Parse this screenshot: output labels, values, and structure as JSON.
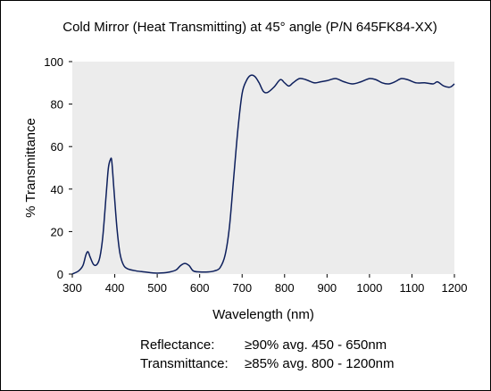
{
  "chart_data": {
    "type": "line",
    "title": "Cold Mirror (Heat Transmitting) at 45° angle (P/N 645FK84-XX)",
    "xlabel": "Wavelength (nm)",
    "ylabel": "% Transmittance",
    "xlim": [
      300,
      1200
    ],
    "ylim": [
      0,
      100
    ],
    "x_ticks": [
      300,
      400,
      500,
      600,
      700,
      800,
      900,
      1000,
      1100,
      1200
    ],
    "y_ticks": [
      0,
      20,
      40,
      60,
      80,
      100
    ],
    "grid": false,
    "legend": "none",
    "colors": {
      "line": "#0d1f5c",
      "plot_background": "#ececec"
    },
    "series": [
      {
        "points": [
          [
            300,
            0
          ],
          [
            315,
            1.5
          ],
          [
            325,
            4
          ],
          [
            332,
            9
          ],
          [
            337,
            10.5
          ],
          [
            342,
            8
          ],
          [
            350,
            4.5
          ],
          [
            358,
            4.5
          ],
          [
            365,
            8
          ],
          [
            372,
            18
          ],
          [
            380,
            38
          ],
          [
            385,
            50
          ],
          [
            390,
            54
          ],
          [
            393,
            53
          ],
          [
            398,
            40
          ],
          [
            405,
            22
          ],
          [
            412,
            10
          ],
          [
            420,
            4.5
          ],
          [
            430,
            2.5
          ],
          [
            450,
            1.5
          ],
          [
            470,
            1
          ],
          [
            490,
            0.5
          ],
          [
            510,
            0.5
          ],
          [
            530,
            1
          ],
          [
            545,
            2
          ],
          [
            555,
            4
          ],
          [
            565,
            5
          ],
          [
            575,
            4
          ],
          [
            585,
            1.5
          ],
          [
            600,
            1
          ],
          [
            620,
            1
          ],
          [
            635,
            1.5
          ],
          [
            648,
            3
          ],
          [
            660,
            9
          ],
          [
            670,
            22
          ],
          [
            680,
            45
          ],
          [
            690,
            68
          ],
          [
            700,
            85
          ],
          [
            710,
            91
          ],
          [
            720,
            93.5
          ],
          [
            730,
            93
          ],
          [
            740,
            90
          ],
          [
            750,
            86
          ],
          [
            760,
            85.5
          ],
          [
            775,
            88
          ],
          [
            790,
            91.5
          ],
          [
            800,
            90
          ],
          [
            810,
            88.5
          ],
          [
            820,
            90
          ],
          [
            835,
            92
          ],
          [
            850,
            91.5
          ],
          [
            870,
            90
          ],
          [
            885,
            90.5
          ],
          [
            900,
            91
          ],
          [
            920,
            92
          ],
          [
            940,
            90.5
          ],
          [
            960,
            89.5
          ],
          [
            980,
            90.5
          ],
          [
            1000,
            92
          ],
          [
            1015,
            91.5
          ],
          [
            1030,
            90
          ],
          [
            1045,
            89.5
          ],
          [
            1060,
            90.5
          ],
          [
            1075,
            92
          ],
          [
            1090,
            91.5
          ],
          [
            1110,
            90
          ],
          [
            1130,
            90
          ],
          [
            1150,
            89.5
          ],
          [
            1160,
            90.5
          ],
          [
            1175,
            88.5
          ],
          [
            1190,
            88
          ],
          [
            1200,
            89.5
          ]
        ]
      }
    ]
  },
  "specs": [
    {
      "label": "Reflectance:",
      "value": "≥90% avg. 450 - 650nm"
    },
    {
      "label": "Transmittance:",
      "value": "≥85% avg. 800 - 1200nm"
    }
  ]
}
